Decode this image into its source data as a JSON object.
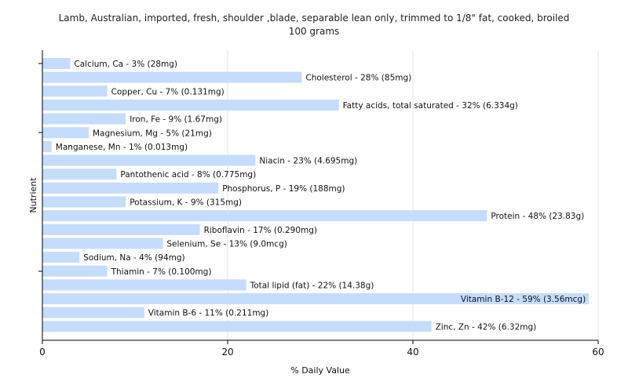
{
  "chart_data": {
    "type": "bar",
    "orientation": "horizontal",
    "title_line1": "Lamb, Australian, imported, fresh, shoulder ,blade, separable lean only, trimmed to 1/8\" fat, cooked, broiled",
    "title_line2": "100 grams",
    "xlabel": "% Daily Value",
    "ylabel": "Nutrient",
    "xlim": [
      0,
      60
    ],
    "xticks": [
      0,
      20,
      40,
      60
    ],
    "grid": true,
    "bar_color": "#c6dcfc",
    "categories": [
      "Calcium, Ca - 3% (28mg)",
      "Cholesterol - 28% (85mg)",
      "Copper, Cu - 7% (0.131mg)",
      "Fatty acids, total saturated - 32% (6.334g)",
      "Iron, Fe - 9% (1.67mg)",
      "Magnesium, Mg - 5% (21mg)",
      "Manganese, Mn - 1% (0.013mg)",
      "Niacin - 23% (4.695mg)",
      "Pantothenic acid - 8% (0.775mg)",
      "Phosphorus, P - 19% (188mg)",
      "Potassium, K - 9% (315mg)",
      "Protein - 48% (23.83g)",
      "Riboflavin - 17% (0.290mg)",
      "Selenium, Se - 13% (9.0mcg)",
      "Sodium, Na - 4% (94mg)",
      "Thiamin - 7% (0.100mg)",
      "Total lipid (fat) - 22% (14.38g)",
      "Vitamin B-12 - 59% (3.56mcg)",
      "Vitamin B-6 - 11% (0.211mg)",
      "Zinc, Zn - 42% (6.32mg)"
    ],
    "values": [
      3,
      28,
      7,
      32,
      9,
      5,
      1,
      23,
      8,
      19,
      9,
      48,
      17,
      13,
      4,
      7,
      22,
      59,
      11,
      42
    ]
  }
}
